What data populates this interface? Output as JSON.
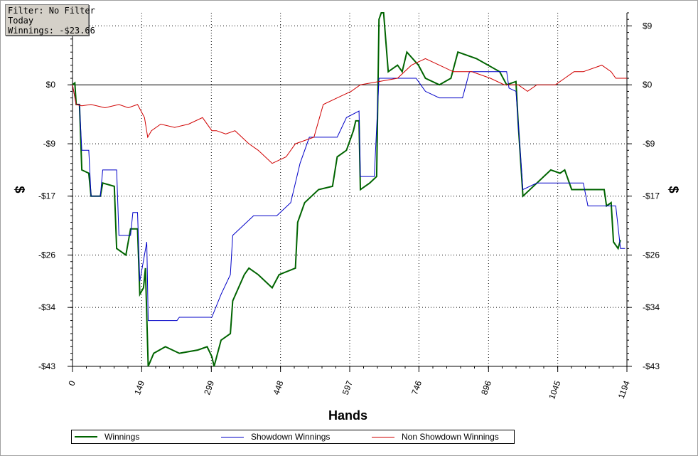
{
  "filter_box": {
    "line1": "Filter: No Filter",
    "line2": "Today",
    "line3": "Winnings: -$23.66"
  },
  "chart_data": {
    "type": "line",
    "title": "",
    "xlabel": "Hands",
    "ylabel": "$",
    "xlim": [
      0,
      1194
    ],
    "ylim": [
      -43,
      11
    ],
    "x_ticks": [
      0,
      149,
      299,
      448,
      597,
      746,
      896,
      1045,
      1194
    ],
    "x_tick_labels": [
      "0",
      "149",
      "299",
      "448",
      "597",
      "746",
      "896",
      "1045",
      "1194"
    ],
    "y_ticks": [
      9,
      0,
      -9,
      -17,
      -26,
      -34,
      -43
    ],
    "y_tick_labels": [
      "$9",
      "$0",
      "-$9",
      "-$17",
      "-$26",
      "-$34",
      "-$43"
    ],
    "grid": true,
    "legend_position": "bottom",
    "series": [
      {
        "name": "Winnings",
        "color": "#006400",
        "width": 2,
        "points": [
          [
            0,
            0
          ],
          [
            5,
            0.3
          ],
          [
            8,
            -3
          ],
          [
            15,
            -3
          ],
          [
            20,
            -13
          ],
          [
            35,
            -13.5
          ],
          [
            40,
            -17
          ],
          [
            60,
            -17
          ],
          [
            65,
            -15
          ],
          [
            90,
            -15.5
          ],
          [
            95,
            -25
          ],
          [
            115,
            -26
          ],
          [
            125,
            -22
          ],
          [
            140,
            -22
          ],
          [
            145,
            -32
          ],
          [
            153,
            -31
          ],
          [
            157,
            -28
          ],
          [
            163,
            -43
          ],
          [
            175,
            -41
          ],
          [
            200,
            -40
          ],
          [
            230,
            -41
          ],
          [
            270,
            -40.5
          ],
          [
            290,
            -40
          ],
          [
            300,
            -41.5
          ],
          [
            305,
            -43
          ],
          [
            320,
            -39
          ],
          [
            340,
            -38
          ],
          [
            345,
            -33
          ],
          [
            370,
            -29
          ],
          [
            380,
            -28
          ],
          [
            400,
            -29
          ],
          [
            430,
            -31
          ],
          [
            445,
            -29
          ],
          [
            480,
            -28
          ],
          [
            485,
            -21
          ],
          [
            500,
            -18
          ],
          [
            530,
            -16
          ],
          [
            560,
            -15.5
          ],
          [
            570,
            -11
          ],
          [
            590,
            -10
          ],
          [
            605,
            -7
          ],
          [
            610,
            -5.5
          ],
          [
            617,
            -5.5
          ],
          [
            620,
            -16
          ],
          [
            640,
            -15
          ],
          [
            655,
            -14
          ],
          [
            660,
            10
          ],
          [
            665,
            11
          ],
          [
            670,
            11
          ],
          [
            680,
            2
          ],
          [
            700,
            3
          ],
          [
            710,
            2
          ],
          [
            720,
            5
          ],
          [
            745,
            3
          ],
          [
            760,
            1
          ],
          [
            790,
            0
          ],
          [
            815,
            1
          ],
          [
            830,
            5
          ],
          [
            870,
            4
          ],
          [
            920,
            2
          ],
          [
            935,
            0
          ],
          [
            955,
            0.5
          ],
          [
            960,
            -6
          ],
          [
            970,
            -17
          ],
          [
            1000,
            -15
          ],
          [
            1030,
            -13
          ],
          [
            1050,
            -13.5
          ],
          [
            1060,
            -13
          ],
          [
            1075,
            -16
          ],
          [
            1100,
            -16
          ],
          [
            1145,
            -16
          ],
          [
            1150,
            -18.5
          ],
          [
            1160,
            -18
          ],
          [
            1165,
            -24
          ],
          [
            1175,
            -25
          ],
          [
            1180,
            -23.7
          ]
        ]
      },
      {
        "name": "Showdown Winnings",
        "color": "#0000c8",
        "width": 1,
        "points": [
          [
            0,
            0
          ],
          [
            8,
            -3
          ],
          [
            15,
            -3
          ],
          [
            20,
            -10
          ],
          [
            35,
            -10
          ],
          [
            40,
            -17
          ],
          [
            60,
            -17
          ],
          [
            65,
            -13
          ],
          [
            95,
            -13
          ],
          [
            100,
            -23
          ],
          [
            125,
            -23
          ],
          [
            130,
            -19.5
          ],
          [
            140,
            -19.5
          ],
          [
            145,
            -30
          ],
          [
            160,
            -24
          ],
          [
            163,
            -36
          ],
          [
            180,
            -36
          ],
          [
            225,
            -36
          ],
          [
            230,
            -35.5
          ],
          [
            290,
            -35.5
          ],
          [
            300,
            -35.5
          ],
          [
            320,
            -32
          ],
          [
            340,
            -29
          ],
          [
            345,
            -23
          ],
          [
            390,
            -20
          ],
          [
            440,
            -20
          ],
          [
            470,
            -18
          ],
          [
            490,
            -12
          ],
          [
            510,
            -8
          ],
          [
            570,
            -8
          ],
          [
            590,
            -5
          ],
          [
            617,
            -4
          ],
          [
            620,
            -14
          ],
          [
            650,
            -14
          ],
          [
            660,
            1
          ],
          [
            680,
            1
          ],
          [
            740,
            1
          ],
          [
            760,
            -1
          ],
          [
            790,
            -2
          ],
          [
            840,
            -2
          ],
          [
            855,
            2
          ],
          [
            935,
            2
          ],
          [
            940,
            -0.5
          ],
          [
            955,
            -1
          ],
          [
            970,
            -16
          ],
          [
            1000,
            -15
          ],
          [
            1045,
            -15
          ],
          [
            1100,
            -15
          ],
          [
            1110,
            -18.5
          ],
          [
            1170,
            -18.5
          ],
          [
            1180,
            -25
          ],
          [
            1190,
            -25
          ]
        ]
      },
      {
        "name": "Non Showdown Winnings",
        "color": "#d00000",
        "width": 1,
        "points": [
          [
            0,
            0
          ],
          [
            8,
            -3
          ],
          [
            20,
            -3.2
          ],
          [
            40,
            -3
          ],
          [
            70,
            -3.5
          ],
          [
            100,
            -3
          ],
          [
            120,
            -3.5
          ],
          [
            140,
            -3
          ],
          [
            155,
            -5
          ],
          [
            162,
            -8
          ],
          [
            170,
            -7
          ],
          [
            190,
            -6
          ],
          [
            220,
            -6.5
          ],
          [
            250,
            -6
          ],
          [
            280,
            -5
          ],
          [
            300,
            -7
          ],
          [
            310,
            -7
          ],
          [
            330,
            -7.5
          ],
          [
            350,
            -7
          ],
          [
            380,
            -9
          ],
          [
            400,
            -10
          ],
          [
            430,
            -12
          ],
          [
            460,
            -11
          ],
          [
            480,
            -9
          ],
          [
            520,
            -8
          ],
          [
            540,
            -3
          ],
          [
            570,
            -2
          ],
          [
            600,
            -1
          ],
          [
            620,
            0
          ],
          [
            660,
            0.5
          ],
          [
            700,
            1
          ],
          [
            730,
            3
          ],
          [
            760,
            4
          ],
          [
            790,
            3
          ],
          [
            820,
            2
          ],
          [
            860,
            2
          ],
          [
            900,
            1
          ],
          [
            930,
            0
          ],
          [
            960,
            0
          ],
          [
            980,
            -1
          ],
          [
            1000,
            0
          ],
          [
            1040,
            0
          ],
          [
            1060,
            1
          ],
          [
            1080,
            2
          ],
          [
            1100,
            2
          ],
          [
            1140,
            3
          ],
          [
            1160,
            2
          ],
          [
            1170,
            1
          ],
          [
            1194,
            1
          ]
        ]
      }
    ]
  }
}
